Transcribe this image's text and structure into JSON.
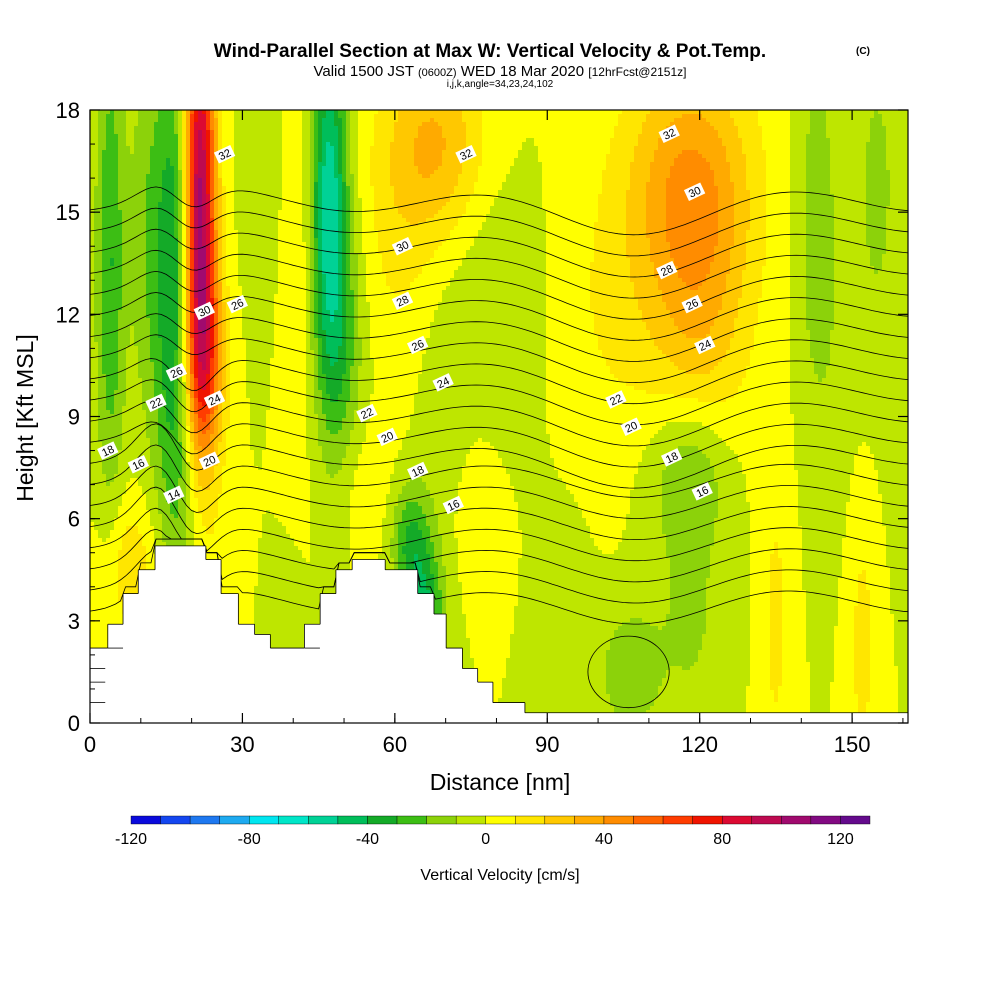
{
  "title": {
    "main": "Wind-Parallel Section at Max W: Vertical Velocity & Pot.Temp.",
    "main_suffix": "(C)",
    "valid_prefix": "Valid 1500 JST",
    "valid_utc": "(0600Z)",
    "valid_date": "WED 18 Mar 2020",
    "valid_fcst": "[12hrFcst@2151z]",
    "indices": "i,j,k,angle=34,23,24,102"
  },
  "chart_data": {
    "type": "heatmap",
    "xlabel": "Distance [nm]",
    "ylabel": "Height [Kft MSL]",
    "xlim": [
      0,
      161
    ],
    "ylim": [
      0,
      18
    ],
    "x_ticks": [
      "0",
      "30",
      "60",
      "90",
      "120",
      "150"
    ],
    "y_ticks": [
      "0",
      "3",
      "6",
      "9",
      "12",
      "15",
      "18"
    ],
    "colorbar": {
      "label": "Vertical Velocity [cm/s]",
      "range": [
        -120,
        130
      ],
      "step": 10,
      "tick_labels": [
        "-120",
        "-80",
        "-40",
        "0",
        "40",
        "80",
        "120"
      ],
      "colors": [
        "#0a0adc",
        "#1446f0",
        "#1e78f0",
        "#1eaaf0",
        "#00e6f0",
        "#00e6c8",
        "#00d296",
        "#00be5a",
        "#14aa28",
        "#3cbe14",
        "#8cd20a",
        "#bee600",
        "#ffff00",
        "#ffe600",
        "#ffc800",
        "#ffaa00",
        "#ff8c00",
        "#ff6400",
        "#ff3c00",
        "#f01400",
        "#dc0a32",
        "#be0a50",
        "#a00a6e",
        "#820a82",
        "#640a8c"
      ]
    },
    "terrain_nm": [
      [
        0,
        2.2
      ],
      [
        3.5,
        2.2
      ],
      [
        3.5,
        2.9
      ],
      [
        6.5,
        2.9
      ],
      [
        6.5,
        3.8
      ],
      [
        9.5,
        3.8
      ],
      [
        9.5,
        4.5
      ],
      [
        12.8,
        4.5
      ],
      [
        12.8,
        5.2
      ],
      [
        22.8,
        5.2
      ],
      [
        22.8,
        4.8
      ],
      [
        25.8,
        4.8
      ],
      [
        25.8,
        3.8
      ],
      [
        29.2,
        3.8
      ],
      [
        29.2,
        2.9
      ],
      [
        32.4,
        2.9
      ],
      [
        32.4,
        2.6
      ],
      [
        35.5,
        2.6
      ],
      [
        35.5,
        2.2
      ],
      [
        42.2,
        2.2
      ],
      [
        42.2,
        2.9
      ],
      [
        45.3,
        2.9
      ],
      [
        45.3,
        3.8
      ],
      [
        48.4,
        3.8
      ],
      [
        48.4,
        4.5
      ],
      [
        51.6,
        4.5
      ],
      [
        51.6,
        4.8
      ],
      [
        58.1,
        4.8
      ],
      [
        58.1,
        4.5
      ],
      [
        64.5,
        4.5
      ],
      [
        64.5,
        3.8
      ],
      [
        67.7,
        3.8
      ],
      [
        67.7,
        3.2
      ],
      [
        70.1,
        3.2
      ],
      [
        70.1,
        2.2
      ],
      [
        73.3,
        2.2
      ],
      [
        73.3,
        1.6
      ],
      [
        76.3,
        1.6
      ],
      [
        76.3,
        1.2
      ],
      [
        79.3,
        1.2
      ],
      [
        79.3,
        0.6
      ],
      [
        85.6,
        0.6
      ],
      [
        85.6,
        0.3
      ],
      [
        161,
        0.3
      ],
      [
        161,
        0
      ]
    ],
    "w_field": {
      "background": 0,
      "features": [
        {
          "x": 21.5,
          "y": 15.5,
          "w": 110,
          "sx": 2.2,
          "sy": 4.2
        },
        {
          "x": 22.5,
          "y": 10.5,
          "w": 50,
          "sx": 2.8,
          "sy": 2.2
        },
        {
          "x": 17.0,
          "y": 12.5,
          "w": -45,
          "sx": 3.0,
          "sy": 5.5
        },
        {
          "x": 4.0,
          "y": 13.5,
          "w": -30,
          "sx": 2.0,
          "sy": 5.0
        },
        {
          "x": 11.0,
          "y": 14.5,
          "w": -15,
          "sx": 2.5,
          "sy": 4.0
        },
        {
          "x": 47.0,
          "y": 15.5,
          "w": -55,
          "sx": 2.5,
          "sy": 3.5
        },
        {
          "x": 49.0,
          "y": 11.0,
          "w": -25,
          "sx": 3.5,
          "sy": 3.0
        },
        {
          "x": 42.0,
          "y": 13.0,
          "w": 10,
          "sx": 3.0,
          "sy": 4.0
        },
        {
          "x": 33.5,
          "y": 16.5,
          "w": -10,
          "sx": 2.5,
          "sy": 3.0
        },
        {
          "x": 66.0,
          "y": 3.0,
          "w": -40,
          "sx": 2.5,
          "sy": 1.5
        },
        {
          "x": 63.0,
          "y": 5.3,
          "w": -30,
          "sx": 2.5,
          "sy": 1.2
        },
        {
          "x": 70.0,
          "y": 8.5,
          "w": -8,
          "sx": 4.0,
          "sy": 3.0
        },
        {
          "x": 68.0,
          "y": 17.0,
          "w": 30,
          "sx": 7.0,
          "sy": 2.0
        },
        {
          "x": 60.0,
          "y": 14.0,
          "w": 10,
          "sx": 6.0,
          "sy": 3.0
        },
        {
          "x": 76.0,
          "y": 6.5,
          "w": 10,
          "sx": 4.0,
          "sy": 1.8
        },
        {
          "x": 53.0,
          "y": 7.0,
          "w": 8,
          "sx": 4.0,
          "sy": 1.5
        },
        {
          "x": 80.0,
          "y": 12.0,
          "w": -10,
          "sx": 6.0,
          "sy": 3.0
        },
        {
          "x": 118.0,
          "y": 16.0,
          "w": 35,
          "sx": 9.0,
          "sy": 2.5
        },
        {
          "x": 120.0,
          "y": 12.0,
          "w": 25,
          "sx": 7.0,
          "sy": 3.0
        },
        {
          "x": 103.0,
          "y": 12.0,
          "w": 10,
          "sx": 8.0,
          "sy": 3.0
        },
        {
          "x": 118.0,
          "y": 7.5,
          "w": -20,
          "sx": 5.5,
          "sy": 1.5
        },
        {
          "x": 118.0,
          "y": 3.5,
          "w": -12,
          "sx": 5.5,
          "sy": 3.0
        },
        {
          "x": 106.0,
          "y": 1.5,
          "w": -18,
          "sx": 4.0,
          "sy": 1.3
        },
        {
          "x": 93.0,
          "y": 2.0,
          "w": -8,
          "sx": 3.5,
          "sy": 2.5
        },
        {
          "x": 135.0,
          "y": 3.0,
          "w": 12,
          "sx": 2.5,
          "sy": 4.0
        },
        {
          "x": 152.0,
          "y": 3.0,
          "w": 14,
          "sx": 2.5,
          "sy": 4.0
        },
        {
          "x": 143.0,
          "y": 15.0,
          "w": -15,
          "sx": 3.0,
          "sy": 4.0
        },
        {
          "x": 155.0,
          "y": 16.0,
          "w": -12,
          "sx": 3.0,
          "sy": 3.0
        },
        {
          "x": 150.0,
          "y": 9.0,
          "w": -6,
          "sx": 6.0,
          "sy": 4.0
        },
        {
          "x": 8.0,
          "y": 4.5,
          "w": 18,
          "sx": 4.0,
          "sy": 1.5
        },
        {
          "x": 26.0,
          "y": 4.2,
          "w": 8,
          "sx": 3.0,
          "sy": 1.5
        },
        {
          "x": 38.0,
          "y": 3.2,
          "w": -8,
          "sx": 2.5,
          "sy": 1.2
        }
      ]
    },
    "theta_contours": {
      "levels": [
        14,
        15,
        16,
        17,
        18,
        19,
        20,
        21,
        22,
        23,
        24,
        25,
        26,
        27,
        28,
        29,
        30,
        31,
        32,
        33
      ],
      "labeled": [
        {
          "text": "14",
          "x": 16.5,
          "y": 6.7
        },
        {
          "text": "16",
          "x": 9.5,
          "y": 7.6
        },
        {
          "text": "18",
          "x": 3.5,
          "y": 8.0
        },
        {
          "text": "22",
          "x": 13.0,
          "y": 9.4
        },
        {
          "text": "26",
          "x": 17.0,
          "y": 10.3
        },
        {
          "text": "20",
          "x": 23.5,
          "y": 7.7
        },
        {
          "text": "24",
          "x": 24.5,
          "y": 9.5
        },
        {
          "text": "30",
          "x": 22.5,
          "y": 12.1
        },
        {
          "text": "26",
          "x": 29.0,
          "y": 12.3
        },
        {
          "text": "32",
          "x": 26.5,
          "y": 16.7
        },
        {
          "text": "32",
          "x": 74.0,
          "y": 16.7
        },
        {
          "text": "30",
          "x": 61.5,
          "y": 14.0
        },
        {
          "text": "28",
          "x": 61.5,
          "y": 12.4
        },
        {
          "text": "26",
          "x": 64.5,
          "y": 11.1
        },
        {
          "text": "24",
          "x": 69.5,
          "y": 10.0
        },
        {
          "text": "22",
          "x": 54.5,
          "y": 9.1
        },
        {
          "text": "20",
          "x": 58.5,
          "y": 8.4
        },
        {
          "text": "18",
          "x": 64.5,
          "y": 7.4
        },
        {
          "text": "16",
          "x": 71.5,
          "y": 6.4
        },
        {
          "text": "32",
          "x": 114.0,
          "y": 17.3
        },
        {
          "text": "30",
          "x": 119.0,
          "y": 15.6
        },
        {
          "text": "28",
          "x": 113.5,
          "y": 13.3
        },
        {
          "text": "26",
          "x": 118.5,
          "y": 12.3
        },
        {
          "text": "24",
          "x": 121.0,
          "y": 11.1
        },
        {
          "text": "22",
          "x": 103.5,
          "y": 9.5
        },
        {
          "text": "20",
          "x": 106.5,
          "y": 8.7
        },
        {
          "text": "18",
          "x": 114.5,
          "y": 7.8
        },
        {
          "text": "16",
          "x": 120.5,
          "y": 6.8
        }
      ]
    }
  }
}
